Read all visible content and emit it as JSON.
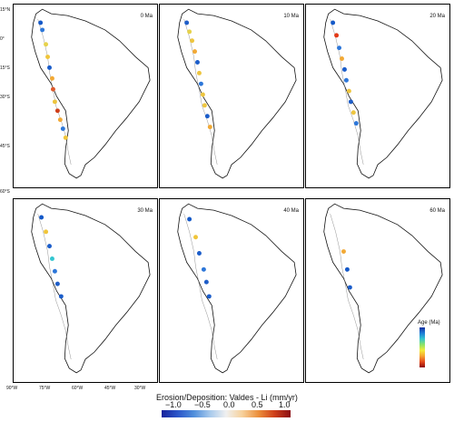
{
  "panels": [
    {
      "age": "0 Ma"
    },
    {
      "age": "10 Ma"
    },
    {
      "age": "20 Ma"
    },
    {
      "age": "30 Ma"
    },
    {
      "age": "40 Ma"
    },
    {
      "age": "60 Ma"
    }
  ],
  "lat_ticks": [
    "15°N",
    "0°",
    "15°S",
    "30°S",
    "45°S",
    "60°S"
  ],
  "lon_ticks": [
    "90°W",
    "75°W",
    "60°W",
    "45°W",
    "30°W"
  ],
  "colorbar": {
    "title": "Erosion/Deposition: Valdes - Li (mm/yr)",
    "ticks": [
      "−1.0",
      "−0.5",
      "0.0",
      "0.5",
      "1.0"
    ],
    "colors": [
      "#17229b",
      "#2a55c9",
      "#4f8edb",
      "#a7c9ec",
      "#f0f0f0",
      "#f7d19b",
      "#ec8f3b",
      "#cf3f1a",
      "#8a0d12"
    ]
  },
  "age_legend": {
    "title": "Age (Ma)"
  }
}
